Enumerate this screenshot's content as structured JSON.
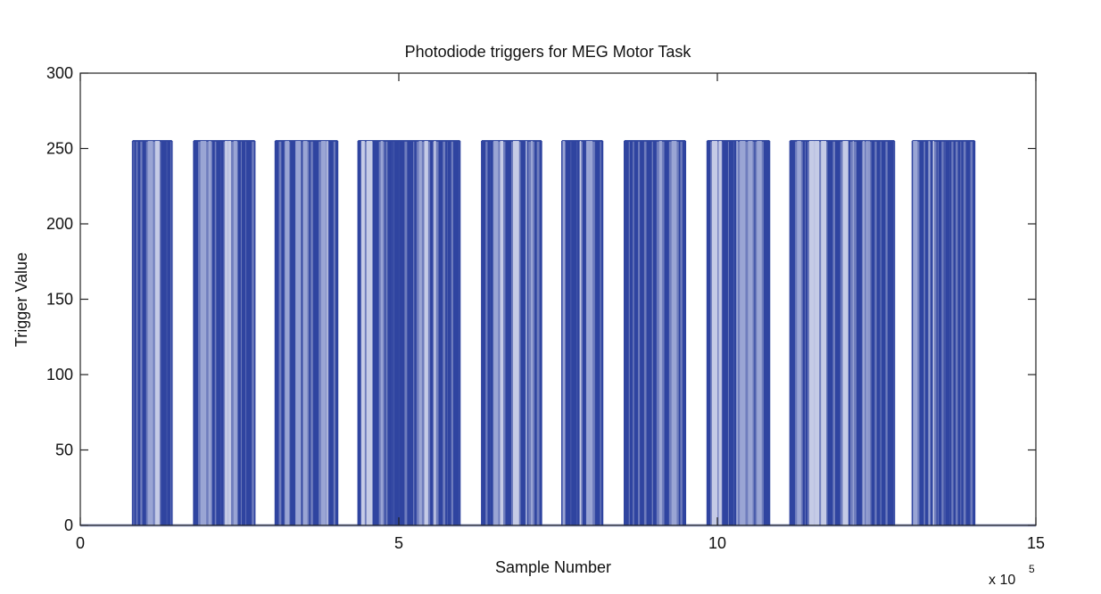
{
  "chart_data": {
    "type": "line",
    "title": "Photodiode triggers for MEG Motor Task",
    "xlabel": "Sample Number",
    "ylabel": "Trigger Value",
    "x_exponent_label": "x 10",
    "x_exponent_power": "5",
    "xlim": [
      0,
      15
    ],
    "ylim": [
      0,
      300
    ],
    "x_ticks": [
      0,
      5,
      10,
      15
    ],
    "x_tick_labels": [
      "0",
      "5",
      "10",
      "15"
    ],
    "y_ticks": [
      0,
      50,
      100,
      150,
      200,
      250,
      300
    ],
    "y_tick_labels": [
      "0",
      "50",
      "100",
      "150",
      "200",
      "250",
      "300"
    ],
    "grid": false,
    "line_color": "#3a4fa3",
    "baseline": 0,
    "high_value": 255,
    "series": [
      {
        "segments_x1e5": [
          [
            0.82,
            1.44
          ],
          [
            1.78,
            2.74
          ],
          [
            3.06,
            4.04
          ],
          [
            4.36,
            5.96
          ],
          [
            6.3,
            7.24
          ],
          [
            7.56,
            8.2
          ],
          [
            8.54,
            9.5
          ],
          [
            9.84,
            10.82
          ],
          [
            11.14,
            12.78
          ],
          [
            13.06,
            14.04
          ]
        ]
      }
    ]
  }
}
